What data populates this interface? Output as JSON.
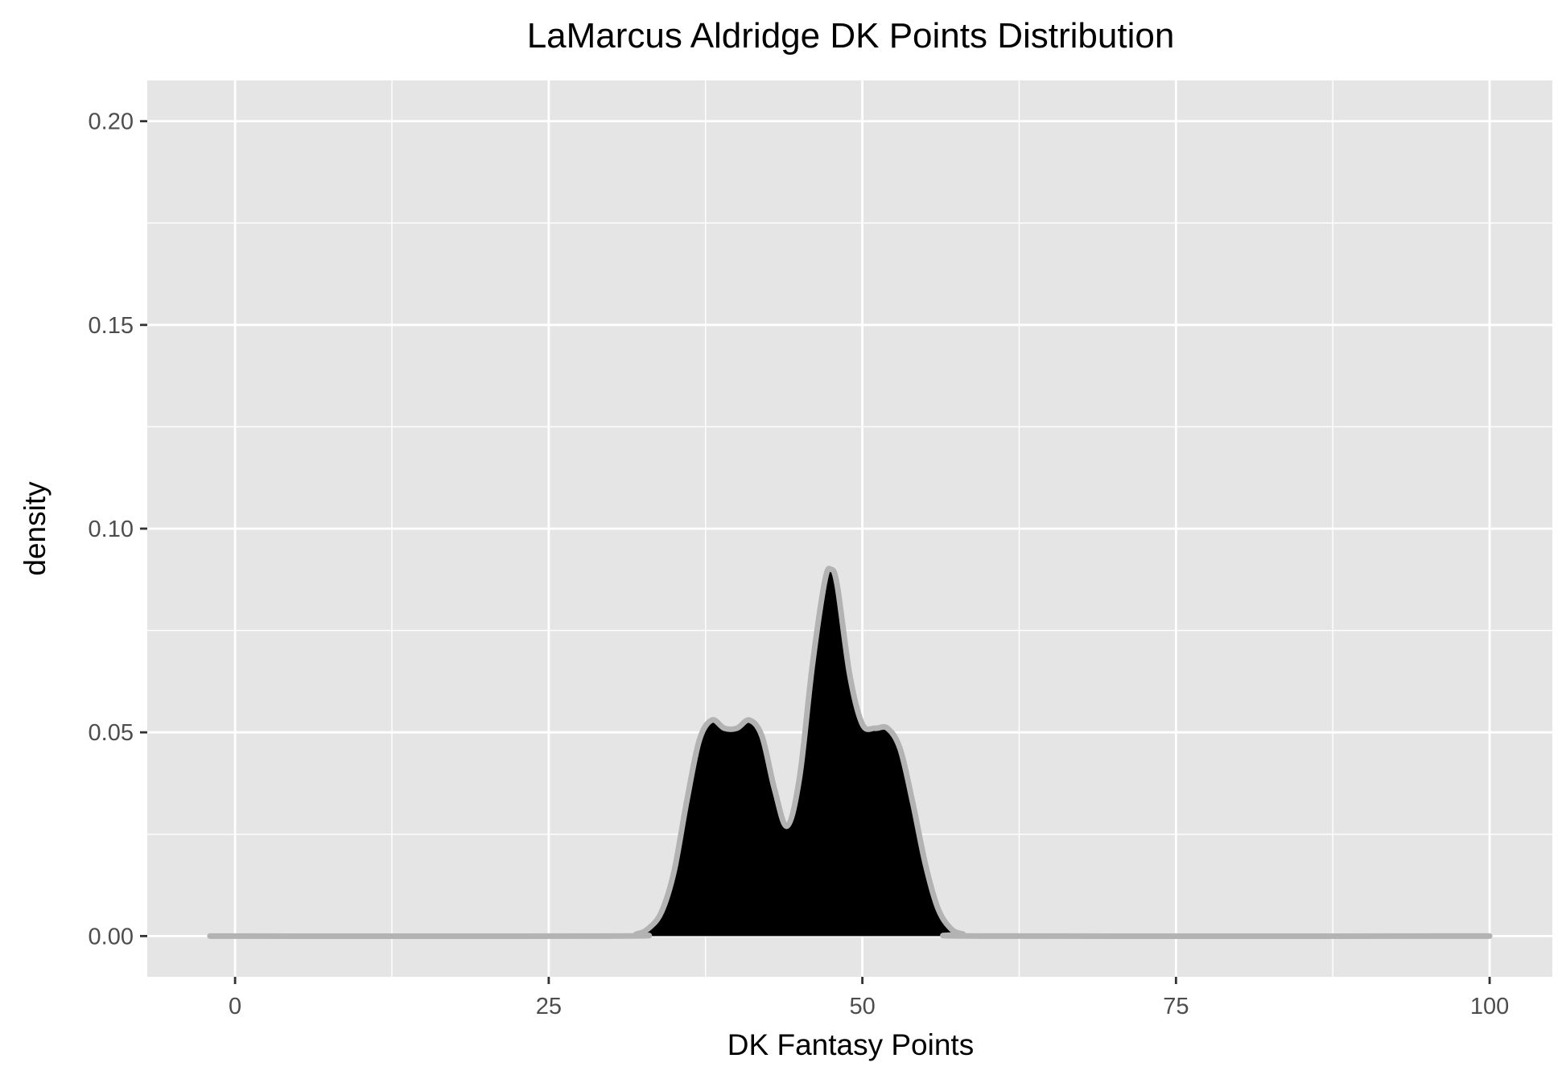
{
  "chart_data": {
    "type": "area",
    "title": "LaMarcus Aldridge DK Points Distribution",
    "xlabel": "DK Fantasy Points",
    "ylabel": "density",
    "xlim": [
      -7,
      105
    ],
    "ylim": [
      -0.01,
      0.21
    ],
    "x_ticks": [
      0,
      25,
      50,
      75,
      100
    ],
    "x_tick_labels": [
      "0",
      "25",
      "50",
      "75",
      "100"
    ],
    "y_ticks": [
      0.0,
      0.05,
      0.1,
      0.15,
      0.2
    ],
    "y_tick_labels": [
      "0.00",
      "0.05",
      "0.10",
      "0.15",
      "0.20"
    ],
    "grid": true,
    "legend": "none",
    "series": [
      {
        "x": [
          -2,
          30,
          32,
          33,
          34,
          35,
          36,
          37,
          38,
          39,
          40,
          41,
          42,
          43,
          44,
          45,
          46,
          47,
          47.5,
          48,
          49,
          50,
          51,
          52,
          53,
          54,
          55,
          56,
          57,
          58,
          60,
          100
        ],
        "y": [
          0,
          0,
          0.0005,
          0.002,
          0.006,
          0.016,
          0.033,
          0.048,
          0.053,
          0.051,
          0.051,
          0.053,
          0.049,
          0.036,
          0.027,
          0.039,
          0.066,
          0.087,
          0.09,
          0.086,
          0.064,
          0.052,
          0.051,
          0.051,
          0.046,
          0.033,
          0.018,
          0.007,
          0.002,
          0.0005,
          0,
          0
        ]
      }
    ]
  },
  "colors": {
    "panel_background": "#e5e5e5",
    "grid": "#ffffff",
    "fill": "#000000",
    "outline": "#b3b3b3"
  }
}
